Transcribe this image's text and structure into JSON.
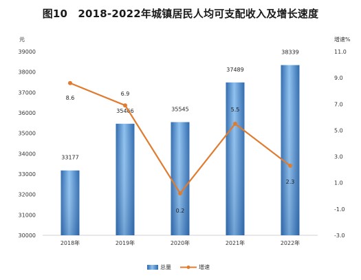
{
  "chart_data": {
    "type": "bar+line",
    "title": "图10　2018-2022年城镇居民人均可支配收入及增长速度",
    "categories": [
      "2018年",
      "2019年",
      "2020年",
      "2021年",
      "2022年"
    ],
    "series": [
      {
        "name": "总量",
        "type": "bar",
        "axis": "left",
        "values": [
          33177,
          35466,
          35545,
          37489,
          38339
        ],
        "color": "#3a78c2"
      },
      {
        "name": "增速",
        "type": "line",
        "axis": "right",
        "values": [
          8.6,
          6.9,
          0.2,
          5.5,
          2.3
        ],
        "color": "#e07b30"
      }
    ],
    "left_axis": {
      "label": "元",
      "min": 30000,
      "max": 39000,
      "ticks": [
        30000,
        31000,
        32000,
        33000,
        34000,
        35000,
        36000,
        37000,
        38000,
        39000
      ]
    },
    "right_axis": {
      "label": "增速%",
      "min": -3.0,
      "max": 11.0,
      "ticks": [
        "-3.0",
        "-1.0",
        "1.0",
        "3.0",
        "5.0",
        "7.0",
        "9.0",
        "11.0"
      ]
    },
    "legend": {
      "position": "bottom-center",
      "items": [
        "总量",
        "增速"
      ]
    },
    "grid": false
  }
}
